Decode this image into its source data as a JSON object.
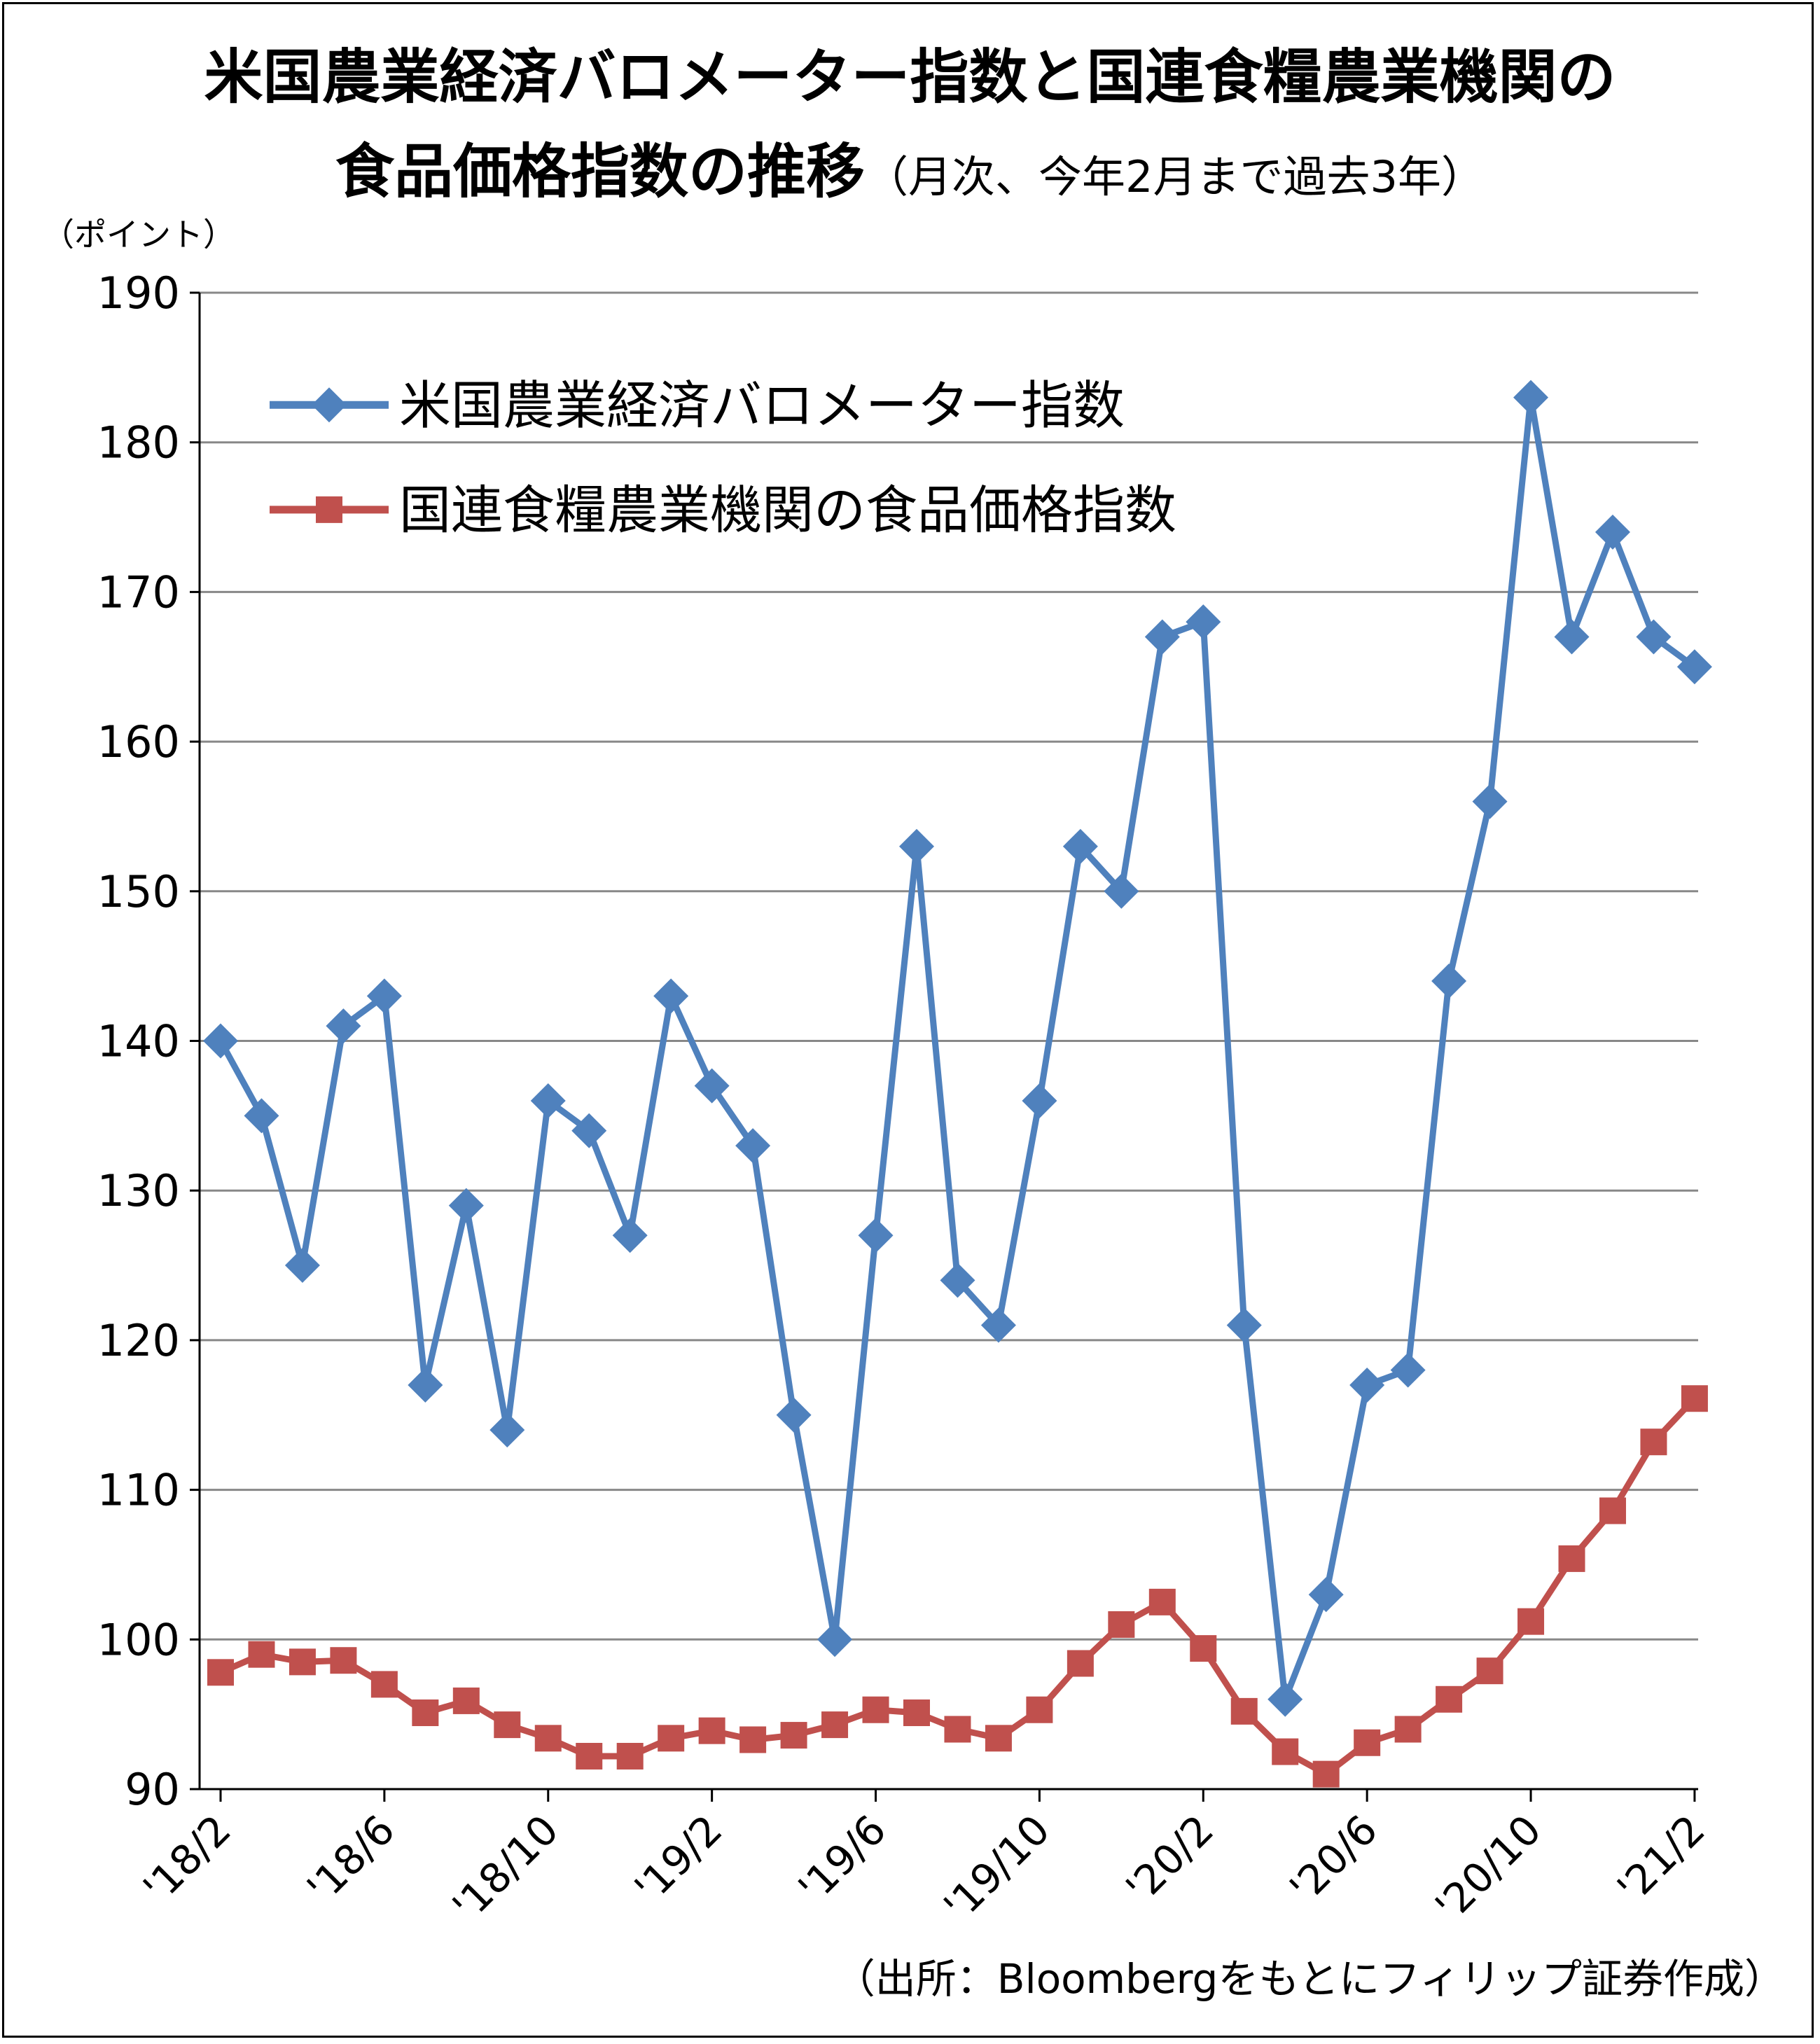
{
  "title_line1": "米国農業経済バロメーター指数と国連食糧農業機関の",
  "title_line2_main": "食品価格指数の推移",
  "title_line2_sub": "（月次、今年2月まで過去3年）",
  "unit_label": "（ポイント）",
  "source_note": "（出所：Bloombergをもとにフィリップ証券作成）",
  "colors": {
    "series1": "#4f81bd",
    "series2": "#c0504d",
    "grid": "#888888",
    "axis": "#000000"
  },
  "chart_data": {
    "type": "line",
    "ylim": [
      90,
      190
    ],
    "yticks": [
      90,
      100,
      110,
      120,
      130,
      140,
      150,
      160,
      170,
      180,
      190
    ],
    "grid": true,
    "legend_position": "top-left",
    "x": [
      "'18/2",
      "'18/3",
      "'18/4",
      "'18/5",
      "'18/6",
      "'18/7",
      "'18/8",
      "'18/9",
      "'18/10",
      "'18/11",
      "'18/12",
      "'19/1",
      "'19/2",
      "'19/3",
      "'19/4",
      "'19/5",
      "'19/6",
      "'19/7",
      "'19/8",
      "'19/9",
      "'19/10",
      "'19/11",
      "'19/12",
      "'20/1",
      "'20/2",
      "'20/3",
      "'20/4",
      "'20/5",
      "'20/6",
      "'20/7",
      "'20/8",
      "'20/9",
      "'20/10",
      "'20/11",
      "'20/12",
      "'21/1",
      "'21/2"
    ],
    "xtick_labels": [
      "'18/2",
      "'18/6",
      "'18/10",
      "'19/2",
      "'19/6",
      "'19/10",
      "'20/2",
      "'20/6",
      "'20/10",
      "'21/2"
    ],
    "series": [
      {
        "name": "米国農業経済バロメーター指数",
        "marker": "diamond",
        "values": [
          140,
          135,
          125,
          141,
          143,
          117,
          129,
          114,
          136,
          134,
          127,
          143,
          137,
          133,
          115,
          100,
          127,
          153,
          124,
          121,
          136,
          153,
          150,
          167,
          168,
          121,
          96,
          103,
          117,
          118,
          144,
          156,
          183,
          167,
          174,
          167,
          165
        ]
      },
      {
        "name": "国連食糧農業機関の食品価格指数",
        "marker": "square",
        "values": [
          97.8,
          99.0,
          98.5,
          98.6,
          97.0,
          95.1,
          95.9,
          94.3,
          93.4,
          92.2,
          92.2,
          93.4,
          93.9,
          93.3,
          93.6,
          94.3,
          95.3,
          95.1,
          94.0,
          93.4,
          95.3,
          98.4,
          101.0,
          102.5,
          99.4,
          95.2,
          92.5,
          91.0,
          93.1,
          94.0,
          96.0,
          97.9,
          101.2,
          105.4,
          108.6,
          113.2,
          116.1
        ]
      }
    ]
  }
}
